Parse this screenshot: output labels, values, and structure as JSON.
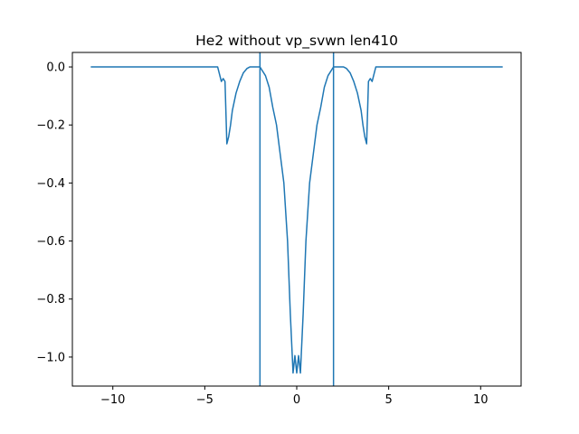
{
  "chart_data": {
    "type": "line",
    "title": "He2 without vp_svwn len410",
    "xlabel": "",
    "ylabel": "",
    "xlim": [
      -12.2,
      12.2
    ],
    "ylim": [
      -1.1,
      0.05
    ],
    "grid": false,
    "legend": "none",
    "colors": {
      "line": "#1f77b4",
      "axes": "#000000",
      "background": "#ffffff"
    },
    "x_ticks": [
      -10,
      -5,
      0,
      5,
      10
    ],
    "x_tick_labels": [
      "−10",
      "−5",
      "0",
      "5",
      "10"
    ],
    "y_ticks": [
      0.0,
      -0.2,
      -0.4,
      -0.6,
      -0.8,
      -1.0
    ],
    "y_tick_labels": [
      "0.0",
      "−0.2",
      "−0.4",
      "−0.6",
      "−0.8",
      "−1.0"
    ],
    "vlines": [
      -2.0,
      2.0
    ],
    "series": [
      {
        "x": [
          -11.2,
          -4.3,
          -4.1,
          -4.0,
          -3.9,
          -3.8,
          -3.7,
          -3.6,
          -3.5,
          -3.3,
          -3.1,
          -2.9,
          -2.7,
          -2.55,
          -2.0,
          -1.9,
          -1.7,
          -1.5,
          -1.3,
          -1.1,
          -0.9,
          -0.7,
          -0.5,
          -0.35,
          -0.2,
          -0.1,
          0.0,
          0.1,
          0.2,
          0.35,
          0.5,
          0.7,
          0.9,
          1.1,
          1.3,
          1.5,
          1.7,
          1.9,
          2.0,
          2.55,
          2.7,
          2.9,
          3.1,
          3.3,
          3.5,
          3.6,
          3.7,
          3.8,
          3.9,
          4.0,
          4.1,
          4.3,
          11.2
        ],
        "y": [
          0.0,
          0.0,
          -0.05,
          -0.04,
          -0.05,
          -0.265,
          -0.24,
          -0.2,
          -0.15,
          -0.09,
          -0.05,
          -0.02,
          -0.005,
          0.0,
          0.0,
          -0.01,
          -0.03,
          -0.07,
          -0.14,
          -0.2,
          -0.3,
          -0.4,
          -0.6,
          -0.85,
          -1.055,
          -0.995,
          -1.055,
          -0.995,
          -1.055,
          -0.85,
          -0.6,
          -0.4,
          -0.3,
          -0.2,
          -0.14,
          -0.07,
          -0.03,
          -0.01,
          0.0,
          0.0,
          -0.005,
          -0.02,
          -0.05,
          -0.09,
          -0.15,
          -0.2,
          -0.24,
          -0.265,
          -0.05,
          -0.04,
          -0.05,
          0.0,
          0.0
        ]
      }
    ]
  }
}
